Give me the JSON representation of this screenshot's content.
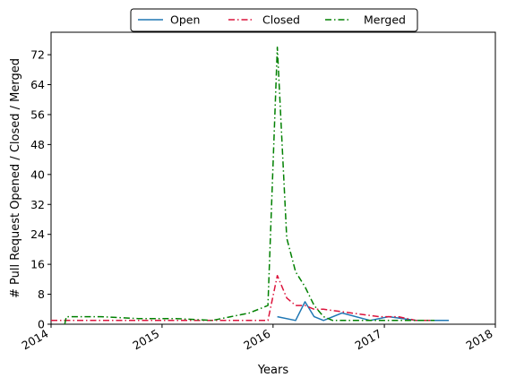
{
  "chart_data": {
    "type": "line",
    "xlabel": "Years",
    "ylabel": "# Pull Request Opened / Closed / Merged",
    "xlim": [
      "2014-01-01",
      "2018-01-01"
    ],
    "ylim": [
      0,
      78
    ],
    "x_ticks": [
      "2014",
      "2015",
      "2016",
      "2017",
      "2018"
    ],
    "y_ticks": [
      0,
      8,
      16,
      24,
      32,
      40,
      48,
      56,
      64,
      72
    ],
    "legend": {
      "placement": "top-center",
      "columns": 3
    },
    "grid": false,
    "series": [
      {
        "name": "Open",
        "color": "#1f77b4",
        "linestyle": "solid",
        "points": [
          [
            "2016-01-15",
            2
          ],
          [
            "2016-03-15",
            1
          ],
          [
            "2016-04-15",
            6
          ],
          [
            "2016-05-15",
            2
          ],
          [
            "2016-06-15",
            1
          ],
          [
            "2016-08-15",
            3
          ],
          [
            "2016-11-15",
            1
          ],
          [
            "2017-01-15",
            2
          ],
          [
            "2017-04-15",
            1
          ],
          [
            "2017-08-01",
            1
          ]
        ]
      },
      {
        "name": "Closed",
        "color": "#dc143c",
        "linestyle": "dashdot",
        "points": [
          [
            "2014-01-01",
            1
          ],
          [
            "2014-01-15",
            1
          ],
          [
            "2014-06-15",
            1
          ],
          [
            "2015-01-15",
            1
          ],
          [
            "2015-06-15",
            1
          ],
          [
            "2015-12-15",
            1
          ],
          [
            "2016-01-15",
            13
          ],
          [
            "2016-02-15",
            7
          ],
          [
            "2016-03-15",
            5
          ],
          [
            "2016-04-15",
            5
          ],
          [
            "2016-05-15",
            4
          ],
          [
            "2016-06-15",
            4
          ],
          [
            "2016-09-15",
            3
          ],
          [
            "2016-12-15",
            2
          ],
          [
            "2017-02-15",
            2
          ],
          [
            "2017-04-15",
            1
          ],
          [
            "2017-06-15",
            1
          ]
        ]
      },
      {
        "name": "Merged",
        "color": "#008000",
        "linestyle": "dashdot",
        "points": [
          [
            "2014-02-15",
            0
          ],
          [
            "2014-02-20",
            2
          ],
          [
            "2014-06-15",
            2
          ],
          [
            "2014-10-15",
            1.5
          ],
          [
            "2015-02-15",
            1.5
          ],
          [
            "2015-06-15",
            1
          ],
          [
            "2015-08-15",
            2
          ],
          [
            "2015-10-15",
            3
          ],
          [
            "2015-12-15",
            5
          ],
          [
            "2016-01-15",
            74
          ],
          [
            "2016-02-15",
            23
          ],
          [
            "2016-03-15",
            14
          ],
          [
            "2016-04-15",
            10
          ],
          [
            "2016-05-15",
            5
          ],
          [
            "2016-06-15",
            2
          ],
          [
            "2016-07-15",
            1
          ],
          [
            "2016-10-15",
            1
          ],
          [
            "2016-12-15",
            1
          ],
          [
            "2017-03-15",
            1
          ],
          [
            "2017-06-15",
            1
          ]
        ]
      }
    ]
  }
}
